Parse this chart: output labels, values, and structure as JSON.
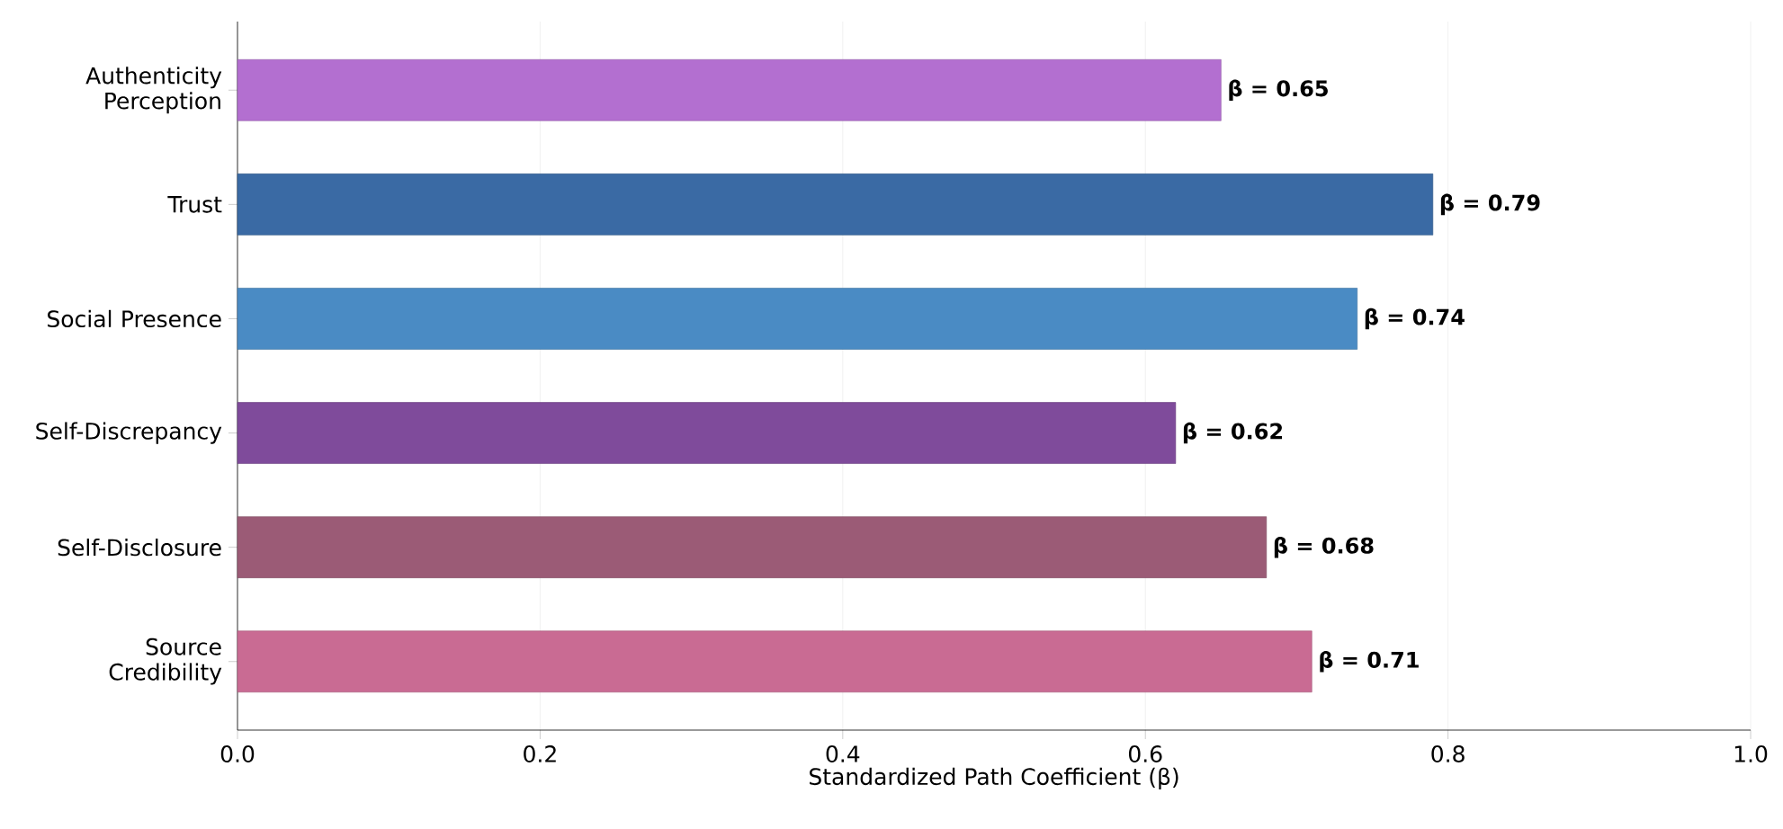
{
  "chart_data": {
    "type": "bar",
    "orientation": "horizontal",
    "xlabel": "Standardized Path Coefficient (β)",
    "categories": [
      "Authenticity Perception",
      "Trust",
      "Social Presence",
      "Self-Discrepancy",
      "Self-Disclosure",
      "Source Credibility"
    ],
    "values": [
      0.65,
      0.79,
      0.74,
      0.62,
      0.68,
      0.71
    ],
    "colors": [
      "#b36fd0",
      "#3a6aa4",
      "#4a8bc4",
      "#7f4b9b",
      "#9b5b76",
      "#c96b93"
    ],
    "value_labels": [
      "β = 0.65",
      "β = 0.79",
      "β = 0.74",
      "β = 0.62",
      "β = 0.68",
      "β = 0.71"
    ],
    "xlim": [
      0,
      1
    ],
    "xticks": [
      {
        "value": 0,
        "label": "0.0"
      },
      {
        "value": 0.2,
        "label": "0.2"
      },
      {
        "value": 0.4,
        "label": "0.4"
      },
      {
        "value": 0.6,
        "label": "0.6"
      },
      {
        "value": 0.8,
        "label": "0.8"
      },
      {
        "value": 1,
        "label": "1.0"
      }
    ],
    "grid": "x"
  }
}
